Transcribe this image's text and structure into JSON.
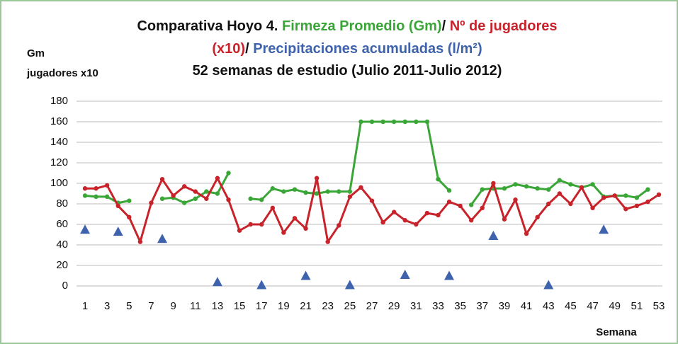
{
  "chart_data": {
    "type": "line",
    "title_lines": [
      [
        {
          "text": "Comparativa Hoyo 4. ",
          "color": "#111111"
        },
        {
          "text": "Firmeza Promedio (Gm)",
          "color": "#3aa637"
        },
        {
          "text": "/ ",
          "color": "#111111"
        },
        {
          "text": "Nº de jugadores",
          "color": "#c8232b"
        }
      ],
      [
        {
          "text": "(x10)",
          "color": "#c8232b"
        },
        {
          "text": "/ ",
          "color": "#111111"
        },
        {
          "text": "Precipitaciones acumuladas (l/m²)",
          "color": "#3f62ad"
        }
      ],
      [
        {
          "text": "52 semanas de estudio (Julio 2011-Julio 2012)",
          "color": "#111111"
        }
      ]
    ],
    "y_label_lines": [
      "Gm",
      "jugadores x10"
    ],
    "x_label": "Semana",
    "categories": [
      1,
      null,
      3,
      null,
      5,
      null,
      7,
      null,
      9,
      null,
      11,
      null,
      13,
      null,
      15,
      null,
      17,
      null,
      19,
      null,
      21,
      null,
      23,
      null,
      25,
      null,
      27,
      null,
      29,
      null,
      31,
      null,
      33,
      null,
      35,
      null,
      37,
      null,
      39,
      null,
      41,
      null,
      43,
      null,
      45,
      null,
      47,
      null,
      49,
      null,
      51,
      null,
      53
    ],
    "ylim": [
      0,
      180
    ],
    "yticks": [
      0,
      20,
      40,
      60,
      80,
      100,
      120,
      140,
      160,
      180
    ],
    "grid": true,
    "series": [
      {
        "color": "#3aa637",
        "marker": "circle",
        "line": true,
        "values": [
          88,
          87,
          87,
          81,
          83,
          null,
          null,
          85,
          86,
          81,
          85,
          92,
          90,
          110,
          null,
          85,
          84,
          95,
          92,
          94,
          91,
          90,
          92,
          92,
          92,
          160,
          160,
          160,
          160,
          160,
          160,
          160,
          104,
          93,
          null,
          79,
          94,
          95,
          95,
          99,
          97,
          95,
          94,
          103,
          99,
          96,
          99,
          87,
          88,
          88,
          86,
          94,
          null
        ]
      },
      {
        "color": "#c8232b",
        "marker": "circle",
        "line": true,
        "values": [
          95,
          95,
          98,
          78,
          67,
          43,
          81,
          104,
          88,
          97,
          92,
          85,
          105,
          84,
          54,
          60,
          60,
          76,
          52,
          66,
          56,
          105,
          43,
          59,
          87,
          96,
          83,
          62,
          72,
          64,
          60,
          71,
          69,
          82,
          78,
          64,
          76,
          100,
          65,
          84,
          51,
          67,
          80,
          90,
          80,
          96,
          76,
          86,
          88,
          75,
          78,
          82,
          89
        ]
      },
      {
        "color": "#3f62ad",
        "marker": "triangle",
        "line": false,
        "values": [
          55,
          null,
          null,
          53,
          null,
          null,
          null,
          46,
          null,
          null,
          null,
          null,
          4,
          null,
          null,
          null,
          1,
          null,
          null,
          null,
          10,
          null,
          null,
          null,
          1,
          null,
          null,
          null,
          null,
          11,
          null,
          null,
          null,
          10,
          null,
          null,
          null,
          49,
          null,
          null,
          null,
          null,
          1,
          null,
          null,
          null,
          null,
          55,
          null,
          null,
          null,
          null,
          null
        ]
      }
    ]
  }
}
